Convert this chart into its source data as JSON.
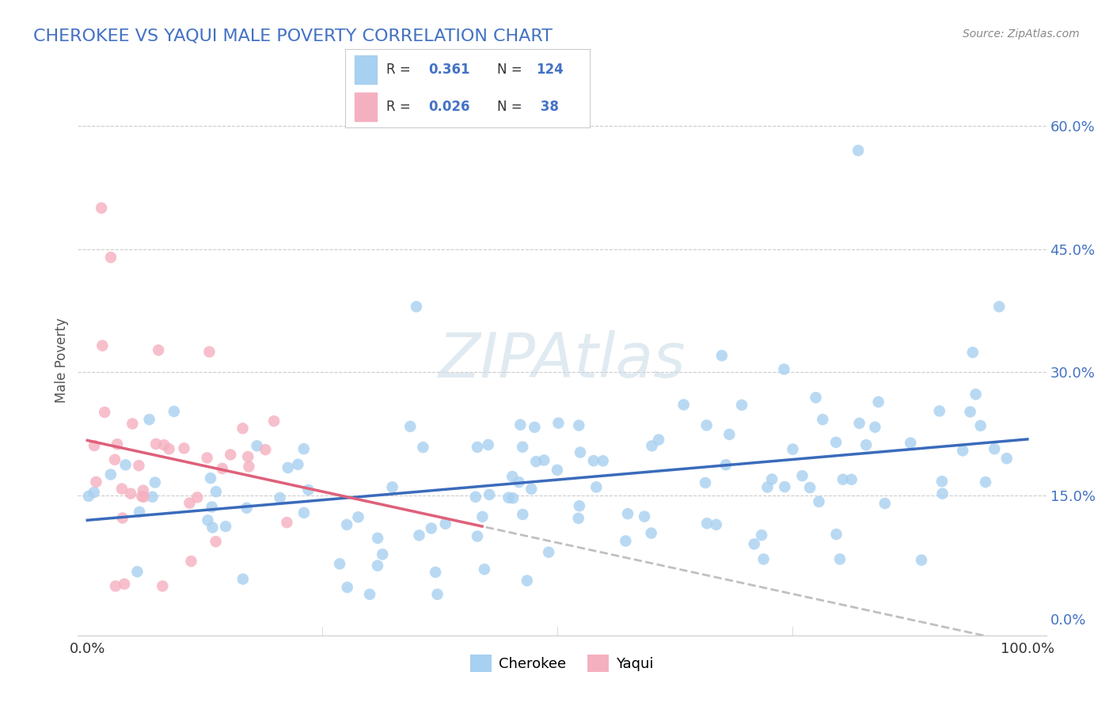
{
  "title": "CHEROKEE VS YAQUI MALE POVERTY CORRELATION CHART",
  "source": "Source: ZipAtlas.com",
  "ylabel": "Male Poverty",
  "cherokee_R": 0.361,
  "cherokee_N": 124,
  "yaqui_R": 0.026,
  "yaqui_N": 38,
  "cherokee_color": "#a8d0f0",
  "yaqui_color": "#f5b0c0",
  "cherokee_line_color": "#3a6bbb",
  "yaqui_line_color": "#e0607a",
  "trend_dashed_color": "#c0c0c0",
  "background_color": "#ffffff",
  "watermark_color": "#ccdce8",
  "title_color": "#4472c4",
  "legend_text_color": "#4472c4",
  "axis_label_color": "#4472c4",
  "tick_label_color": "#333333",
  "grid_color": "#cccccc",
  "yticks": [
    0.0,
    0.15,
    0.3,
    0.45,
    0.6
  ],
  "ytick_labels_right": [
    "0.0%",
    "15.0%",
    "30.0%",
    "45.0%",
    "60.0%"
  ]
}
